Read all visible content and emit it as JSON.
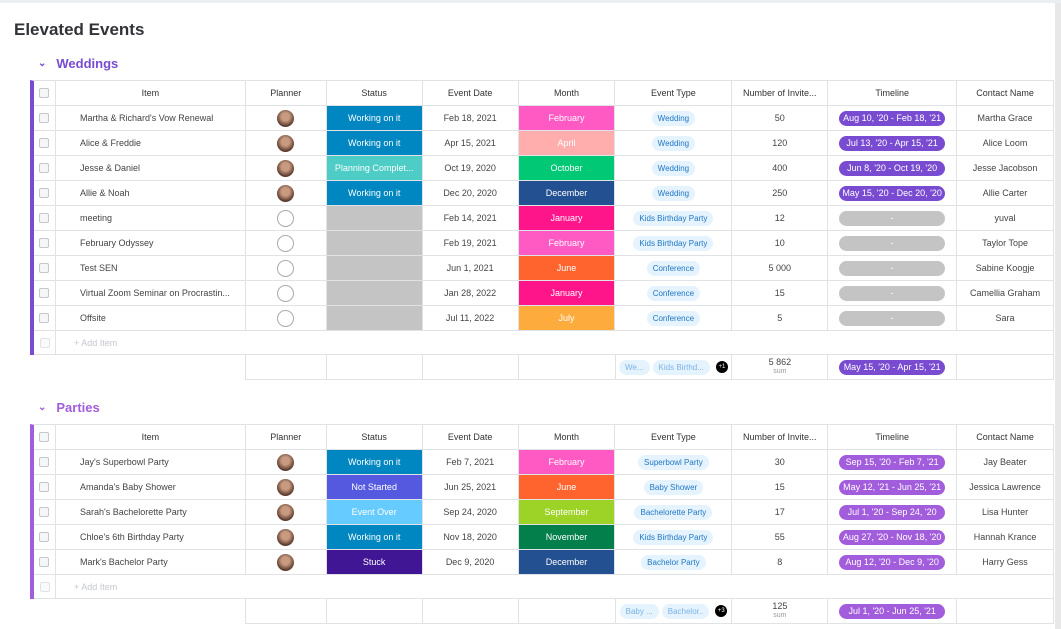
{
  "title": "Elevated Events",
  "columns": [
    "Item",
    "Planner",
    "Status",
    "Event Date",
    "Month",
    "Event Type",
    "Number of Invite...",
    "Timeline",
    "Contact Name"
  ],
  "add_item": "+ Add Item",
  "sum_label": "sum",
  "colors": {
    "status": {
      "Working on it": "#0086c0",
      "Planning Complet...": "#4eccc6",
      "": "#c4c4c4",
      "Not Started": "#5559df",
      "Event Over": "#66ccff",
      "Stuck": "#401694"
    },
    "month": {
      "February": "#ff5ac4",
      "April": "#ffadad",
      "October": "#00c875",
      "December": "#225091",
      "January": "#ff158a",
      "June": "#ff642e",
      "July": "#fdab3d",
      "September": "#9cd326",
      "November": "#037f4c"
    }
  },
  "groups": [
    {
      "name": "Weddings",
      "color": "#784bd1",
      "rows": [
        {
          "item": "Martha & Richard's Vow Renewal",
          "planner": "photo",
          "status": "Working on it",
          "date": "Feb 18, 2021",
          "month": "February",
          "type": "Wedding",
          "invitees": "50",
          "timeline": "Aug 10, '20 - Feb 18, '21",
          "contact": "Martha Grace"
        },
        {
          "item": "Alice & Freddie",
          "planner": "photo",
          "status": "Working on it",
          "date": "Apr 15, 2021",
          "month": "April",
          "type": "Wedding",
          "invitees": "120",
          "timeline": "Jul 13, '20 - Apr 15, '21",
          "contact": "Alice Loom"
        },
        {
          "item": "Jesse & Daniel",
          "planner": "photo",
          "status": "Planning Complet...",
          "date": "Oct 19, 2020",
          "month": "October",
          "type": "Wedding",
          "invitees": "400",
          "timeline": "Jun 8, '20 - Oct 19, '20",
          "contact": "Jesse Jacobson"
        },
        {
          "item": "Allie & Noah",
          "planner": "photo",
          "status": "Working on it",
          "date": "Dec 20, 2020",
          "month": "December",
          "type": "Wedding",
          "invitees": "250",
          "timeline": "May 15, '20 - Dec 20, '20",
          "contact": "Allie Carter"
        },
        {
          "item": "meeting",
          "planner": "",
          "status": "",
          "date": "Feb 14, 2021",
          "month": "January",
          "type": "Kids Birthday Party",
          "invitees": "12",
          "timeline": "-",
          "contact": "yuval"
        },
        {
          "item": "February Odyssey",
          "planner": "",
          "status": "",
          "date": "Feb 19, 2021",
          "month": "February",
          "type": "Kids Birthday Party",
          "invitees": "10",
          "timeline": "-",
          "contact": "Taylor Tope"
        },
        {
          "item": "Test SEN",
          "planner": "",
          "status": "",
          "date": "Jun 1, 2021",
          "month": "June",
          "type": "Conference",
          "invitees": "5 000",
          "timeline": "-",
          "contact": "Sabine Koogje"
        },
        {
          "item": "Virtual Zoom Seminar on Procrastin...",
          "planner": "",
          "status": "",
          "date": "Jan 28, 2022",
          "month": "January",
          "type": "Conference",
          "invitees": "15",
          "timeline": "-",
          "contact": "Camellia Graham"
        },
        {
          "item": "Offsite",
          "planner": "",
          "status": "",
          "date": "Jul 11, 2022",
          "month": "July",
          "type": "Conference",
          "invitees": "5",
          "timeline": "-",
          "contact": "Sara"
        }
      ],
      "summary": {
        "tags": [
          "We...",
          "Kids Birthd..."
        ],
        "more": "+1",
        "sum": "5 862",
        "timeline": "May 15, '20 - Apr 15, '21"
      }
    },
    {
      "name": "Parties",
      "color": "#a25ddc",
      "rows": [
        {
          "item": "Jay's Superbowl Party",
          "planner": "photo",
          "status": "Working on it",
          "date": "Feb 7, 2021",
          "month": "February",
          "type": "Superbowl Party",
          "invitees": "30",
          "timeline": "Sep 15, '20 - Feb 7, '21",
          "contact": "Jay Beater"
        },
        {
          "item": "Amanda's Baby Shower",
          "planner": "photo",
          "status": "Not Started",
          "date": "Jun 25, 2021",
          "month": "June",
          "type": "Baby Shower",
          "invitees": "15",
          "timeline": "May 12, '21 - Jun 25, '21",
          "contact": "Jessica Lawrence"
        },
        {
          "item": "Sarah's Bachelorette Party",
          "planner": "photo",
          "status": "Event Over",
          "date": "Sep 24, 2020",
          "month": "September",
          "type": "Bachelorette Party",
          "invitees": "17",
          "timeline": "Jul 1, '20 - Sep 24, '20",
          "contact": "Lisa Hunter"
        },
        {
          "item": "Chloe's 6th Birthday Party",
          "planner": "photo",
          "status": "Working on it",
          "date": "Nov 18, 2020",
          "month": "November",
          "type": "Kids Birthday Party",
          "invitees": "55",
          "timeline": "Aug 27, '20 - Nov 18, '20",
          "contact": "Hannah Krance"
        },
        {
          "item": "Mark's Bachelor Party",
          "planner": "photo",
          "status": "Stuck",
          "date": "Dec 9, 2020",
          "month": "December",
          "type": "Bachelor Party",
          "invitees": "8",
          "timeline": "Aug 12, '20 - Dec 9, '20",
          "contact": "Harry Gess"
        }
      ],
      "summary": {
        "tags": [
          "Baby ...",
          "Bachelor.."
        ],
        "more": "+3",
        "sum": "125",
        "timeline": "Jul 1, '20 - Jun 25, '21"
      }
    }
  ]
}
